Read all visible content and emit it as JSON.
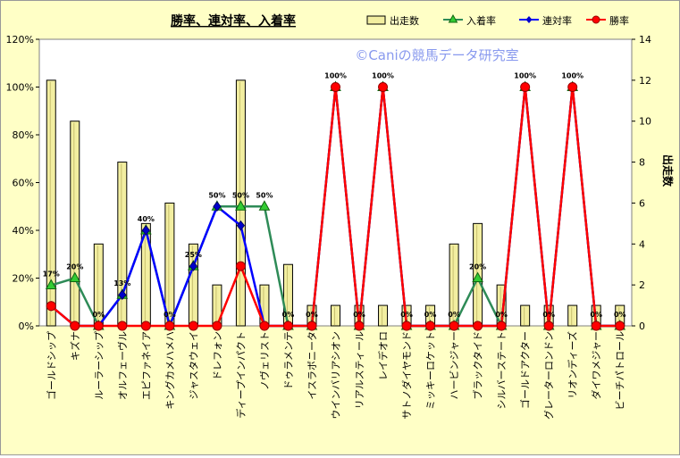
{
  "chart_data": {
    "type": "bar+line",
    "title": "勝率、連対率、入着率",
    "watermark": "©Caniの競馬データ研究室",
    "ylabel_right": "出走数",
    "y_left_ticks": [
      "0%",
      "20%",
      "40%",
      "60%",
      "80%",
      "100%",
      "120%"
    ],
    "y_left_range": [
      0,
      1.2
    ],
    "y_right_range": [
      0,
      14
    ],
    "y_right_ticks": [
      "0",
      "2",
      "4",
      "6",
      "8",
      "10",
      "12",
      "14"
    ],
    "legend_position": "top-right",
    "categories": [
      "ゴールドシップ",
      "キズナ",
      "ルーラーシップ",
      "オルフェーヴル",
      "エピファネイア",
      "キングカメハメハ",
      "ジャスタウェイ",
      "ドレフォン",
      "ディープインパクト",
      "ノヴェリスト",
      "ドゥラメンテ",
      "イスラボニータ",
      "ウインバリアシオン",
      "リアルスティール",
      "レイデオロ",
      "サトノダイヤモンド",
      "ミッキーロケット",
      "ハービンジャー",
      "ブラックタイド",
      "シルバーステート",
      "ゴールドアクター",
      "グレーターロンドン",
      "リオンディーズ",
      "ダイワメジャー",
      "ビーチパトロール"
    ],
    "series": [
      {
        "name": "出走数",
        "kind": "bar",
        "axis": "right",
        "color": "#f2eea0",
        "values": [
          12,
          10,
          4,
          8,
          5,
          6,
          4,
          2,
          12,
          2,
          3,
          1,
          1,
          1,
          1,
          1,
          1,
          4,
          5,
          2,
          1,
          1,
          1,
          1,
          1
        ]
      },
      {
        "name": "入着率",
        "kind": "line",
        "axis": "left",
        "color": "#2e8b57",
        "marker": "triangle",
        "marker_color": "#33cc33",
        "values": [
          0.17,
          0.2,
          0,
          0.13,
          0.4,
          0,
          0.25,
          0.5,
          0.5,
          0.5,
          0,
          0,
          1,
          0,
          1,
          0,
          0,
          0,
          0.2,
          0,
          1,
          0,
          1,
          0,
          0
        ]
      },
      {
        "name": "連対率",
        "kind": "line",
        "axis": "left",
        "color": "#0000ff",
        "marker": "diamond",
        "marker_color": "#0000cc",
        "values": [
          0.083,
          0,
          0,
          0.13,
          0.4,
          0,
          0.25,
          0.5,
          0.42,
          0,
          0,
          0,
          1,
          0,
          1,
          0,
          0,
          0,
          0,
          0,
          1,
          0,
          1,
          0,
          0
        ]
      },
      {
        "name": "勝率",
        "kind": "line",
        "axis": "left",
        "color": "#ff0000",
        "marker": "circle",
        "marker_color": "#ff0000",
        "values": [
          0.083,
          0,
          0,
          0,
          0,
          0,
          0,
          0,
          0.25,
          0,
          0,
          0,
          1,
          0,
          1,
          0,
          0,
          0,
          0,
          0,
          1,
          0,
          1,
          0,
          0
        ]
      }
    ],
    "data_labels": [
      "17%",
      "20%",
      "0%",
      "13%",
      "40%",
      "0%",
      "25%",
      "50%",
      "50%",
      "50%",
      "0%",
      "0%",
      "100%",
      "0%",
      "100%",
      "0%",
      "0%",
      "0%",
      "20%",
      "0%",
      "100%",
      "0%",
      "100%",
      "0%",
      "0%"
    ]
  }
}
